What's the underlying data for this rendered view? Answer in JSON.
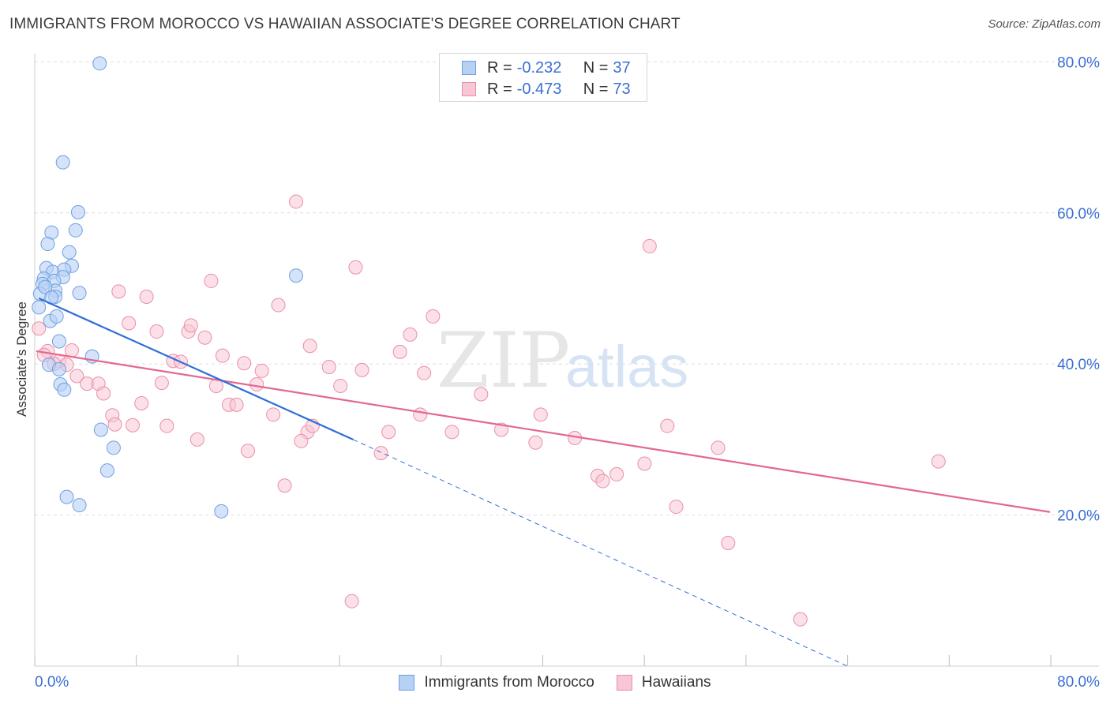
{
  "header": {
    "title": "IMMIGRANTS FROM MOROCCO VS HAWAIIAN ASSOCIATE'S DEGREE CORRELATION CHART",
    "source": "Source: ZipAtlas.com"
  },
  "watermark": {
    "zip": "ZIP",
    "atlas": "atlas"
  },
  "legend_top": {
    "rows": [
      {
        "r_label": "R =",
        "r_value": "-0.232",
        "n_label": "N =",
        "n_value": "37"
      },
      {
        "r_label": "R =",
        "r_value": "-0.473",
        "n_label": "N =",
        "n_value": "73"
      }
    ]
  },
  "legend_bottom": {
    "items": [
      {
        "label": "Immigrants from Morocco"
      },
      {
        "label": "Hawaiians"
      }
    ]
  },
  "colors": {
    "blue_fill": "#b7d1f5",
    "blue_stroke": "#6f9fe0",
    "blue_line": "#2e6fd6",
    "pink_fill": "#f8c6d4",
    "pink_stroke": "#ea8ea9",
    "pink_line": "#e26891",
    "tick_text": "#3b6fd4",
    "grid": "#dedede"
  },
  "chart_data": {
    "type": "scatter",
    "title": "IMMIGRANTS FROM MOROCCO VS HAWAIIAN ASSOCIATE'S DEGREE CORRELATION CHART",
    "xlabel": "",
    "ylabel": "Associate's Degree",
    "xlim": [
      0,
      80
    ],
    "ylim": [
      0,
      80
    ],
    "x_tick_labels": [
      "0.0%",
      "80.0%"
    ],
    "y_ticks": [
      20,
      40,
      60,
      80
    ],
    "y_tick_labels": [
      "20.0%",
      "40.0%",
      "60.0%",
      "80.0%"
    ],
    "grid": true,
    "legend_position": "top-center",
    "series": [
      {
        "name": "Immigrants from Morocco",
        "color": "#b7d1f5",
        "r": -0.232,
        "n": 37,
        "points": [
          [
            5.0,
            79.8
          ],
          [
            2.1,
            66.7
          ],
          [
            3.3,
            60.1
          ],
          [
            1.2,
            57.4
          ],
          [
            3.1,
            57.7
          ],
          [
            0.9,
            55.9
          ],
          [
            2.6,
            54.8
          ],
          [
            2.8,
            53.0
          ],
          [
            0.8,
            52.7
          ],
          [
            1.3,
            52.2
          ],
          [
            2.2,
            52.5
          ],
          [
            0.6,
            51.3
          ],
          [
            2.1,
            51.5
          ],
          [
            1.4,
            51.0
          ],
          [
            0.5,
            50.6
          ],
          [
            1.5,
            49.7
          ],
          [
            3.4,
            49.4
          ],
          [
            0.3,
            49.3
          ],
          [
            1.5,
            48.9
          ],
          [
            20.5,
            51.7
          ],
          [
            1.1,
            45.7
          ],
          [
            1.6,
            46.3
          ],
          [
            1.8,
            43.0
          ],
          [
            4.4,
            41.0
          ],
          [
            1.0,
            39.9
          ],
          [
            1.8,
            39.3
          ],
          [
            1.9,
            37.3
          ],
          [
            2.2,
            36.6
          ],
          [
            5.1,
            31.3
          ],
          [
            6.1,
            28.9
          ],
          [
            5.6,
            25.9
          ],
          [
            2.4,
            22.4
          ],
          [
            3.4,
            21.3
          ],
          [
            14.6,
            20.5
          ],
          [
            0.2,
            47.5
          ],
          [
            0.7,
            50.2
          ],
          [
            1.2,
            48.8
          ]
        ]
      },
      {
        "name": "Hawaiians",
        "color": "#f8c6d4",
        "r": -0.473,
        "n": 73,
        "points": [
          [
            0.2,
            44.7
          ],
          [
            0.9,
            41.7
          ],
          [
            2.8,
            41.8
          ],
          [
            1.8,
            40.4
          ],
          [
            2.4,
            39.9
          ],
          [
            3.2,
            38.4
          ],
          [
            4.0,
            37.4
          ],
          [
            4.9,
            37.4
          ],
          [
            5.3,
            36.1
          ],
          [
            6.0,
            33.2
          ],
          [
            6.2,
            32.0
          ],
          [
            6.5,
            49.6
          ],
          [
            7.3,
            45.4
          ],
          [
            7.6,
            31.9
          ],
          [
            8.3,
            34.8
          ],
          [
            8.7,
            48.9
          ],
          [
            9.5,
            44.3
          ],
          [
            9.9,
            37.5
          ],
          [
            10.3,
            31.8
          ],
          [
            10.8,
            40.4
          ],
          [
            11.4,
            40.3
          ],
          [
            12.0,
            44.3
          ],
          [
            12.2,
            45.1
          ],
          [
            12.7,
            30.0
          ],
          [
            13.3,
            43.5
          ],
          [
            13.8,
            51.0
          ],
          [
            14.2,
            37.1
          ],
          [
            14.7,
            41.1
          ],
          [
            15.2,
            34.6
          ],
          [
            15.8,
            34.6
          ],
          [
            16.4,
            40.1
          ],
          [
            16.7,
            28.5
          ],
          [
            17.4,
            37.3
          ],
          [
            17.8,
            39.1
          ],
          [
            18.7,
            33.3
          ],
          [
            19.1,
            47.8
          ],
          [
            19.6,
            23.9
          ],
          [
            20.5,
            61.5
          ],
          [
            21.4,
            31.0
          ],
          [
            21.8,
            31.8
          ],
          [
            20.9,
            29.8
          ],
          [
            21.6,
            42.4
          ],
          [
            23.1,
            39.6
          ],
          [
            24.0,
            37.1
          ],
          [
            24.9,
            8.6
          ],
          [
            25.2,
            52.8
          ],
          [
            25.7,
            39.2
          ],
          [
            27.2,
            28.2
          ],
          [
            27.8,
            31.0
          ],
          [
            28.7,
            41.6
          ],
          [
            29.5,
            43.9
          ],
          [
            30.3,
            33.3
          ],
          [
            30.6,
            38.8
          ],
          [
            31.3,
            46.3
          ],
          [
            32.8,
            31.0
          ],
          [
            35.1,
            36.0
          ],
          [
            36.7,
            31.3
          ],
          [
            39.4,
            29.6
          ],
          [
            39.8,
            33.3
          ],
          [
            42.5,
            30.2
          ],
          [
            44.3,
            25.2
          ],
          [
            44.7,
            24.5
          ],
          [
            45.8,
            25.4
          ],
          [
            48.0,
            26.8
          ],
          [
            48.4,
            55.6
          ],
          [
            49.8,
            31.8
          ],
          [
            50.5,
            21.1
          ],
          [
            53.8,
            28.9
          ],
          [
            54.6,
            16.3
          ],
          [
            60.3,
            6.2
          ],
          [
            71.2,
            27.1
          ],
          [
            0.6,
            41.2
          ],
          [
            1.4,
            40.0
          ]
        ]
      }
    ],
    "trendlines": [
      {
        "series": "Immigrants from Morocco",
        "x": [
          0.2,
          25.0
        ],
        "y": [
          48.7,
          30.0
        ],
        "dashed_extension_to": [
          64.0,
          0.0
        ]
      },
      {
        "series": "Hawaiians",
        "x": [
          0.0,
          80.0
        ],
        "y": [
          41.7,
          20.4
        ]
      }
    ]
  }
}
